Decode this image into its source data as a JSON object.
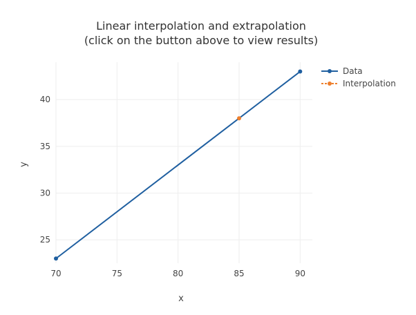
{
  "chart_data": {
    "type": "line",
    "title_lines": [
      "Linear interpolation and extrapolation",
      "(click on the button above to view results)"
    ],
    "xlabel": "x",
    "ylabel": "y",
    "xlim": [
      70,
      91
    ],
    "ylim": [
      22.5,
      44
    ],
    "x_ticks": [
      70,
      75,
      80,
      85,
      90
    ],
    "y_ticks": [
      25,
      30,
      35,
      40
    ],
    "grid": true,
    "legend_position": "top-right",
    "series": [
      {
        "name": "Data",
        "color": "#1f5fa0",
        "style": "solid-with-markers",
        "x": [
          70,
          90
        ],
        "y": [
          23,
          43
        ]
      },
      {
        "name": "Interpolation",
        "color": "#ee7f2d",
        "style": "dashed-with-markers",
        "x": [
          85
        ],
        "y": [
          38
        ]
      }
    ]
  }
}
